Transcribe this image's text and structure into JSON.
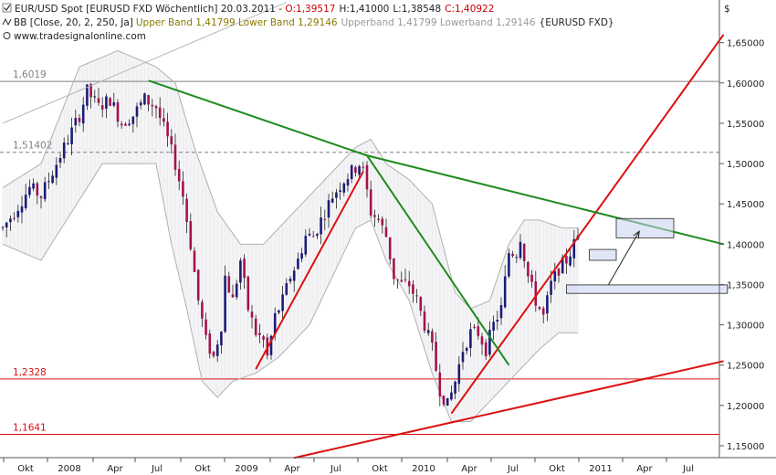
{
  "header": {
    "line1_prefix": "EUR/USD Spot [EURUSD FXD  Wöchentlich] 20.03.2011 - ",
    "open": "O:1,39517",
    "high": "H:1,41000",
    "low": "L:1,38548",
    "close": "C:1,40922",
    "line2_prefix": "BB [Close, 20, 2, 250, Ja]",
    "bands_current": "Upper Band 1,41799 Lower Band 1,29146",
    "bands_prev": "Upperband 1,41799 Lowerband 1,29146",
    "bands_symbol": "{EURUSD FXD}",
    "source": "www.tradesignalonline.com",
    "currency": "$"
  },
  "colors": {
    "candle_up": "#1c1c78",
    "candle_down": "#a3134a",
    "support_red": "#dc1010",
    "trend_green": "#1e8c1e",
    "band_gray": "#b0b0b0",
    "header_red": "#cc0000",
    "header_olive": "#8a7a00",
    "header_gray": "#999999"
  },
  "chart_data": {
    "type": "candlestick",
    "instrument": "EUR/USD",
    "timeframe": "weekly",
    "ylim": [
      1.13,
      1.67
    ],
    "y_ticks": [
      "1,15000",
      "1,20000",
      "1,25000",
      "1,30000",
      "1,35000",
      "1,40000",
      "1,45000",
      "1,50000",
      "1,55000",
      "1,60000",
      "1,65000"
    ],
    "x_ticks": [
      "Okt",
      "2008",
      "Apr",
      "Jul",
      "Okt",
      "2009",
      "Apr",
      "Jul",
      "Okt",
      "2010",
      "Apr",
      "Jul",
      "Okt",
      "2011",
      "Apr",
      "Jul"
    ],
    "levels": [
      {
        "value": 1.6019,
        "label": "1,6019",
        "color": "#808080",
        "style": "solid"
      },
      {
        "value": 1.51402,
        "label": "1,51402",
        "color": "#808080",
        "style": "dashed"
      },
      {
        "value": 1.2328,
        "label": "1,2328",
        "color": "#dc1010",
        "style": "solid"
      },
      {
        "value": 1.1641,
        "label": "1,1641",
        "color": "#dc1010",
        "style": "solid"
      }
    ],
    "waypoints": [
      [
        0,
        1.42
      ],
      [
        3,
        1.44
      ],
      [
        7,
        1.47
      ],
      [
        10,
        1.46
      ],
      [
        14,
        1.5
      ],
      [
        18,
        1.54
      ],
      [
        20,
        1.56
      ],
      [
        22,
        1.59
      ],
      [
        25,
        1.57
      ],
      [
        28,
        1.58
      ],
      [
        31,
        1.55
      ],
      [
        34,
        1.56
      ],
      [
        37,
        1.58
      ],
      [
        40,
        1.57
      ],
      [
        43,
        1.53
      ],
      [
        45,
        1.5
      ],
      [
        47,
        1.46
      ],
      [
        49,
        1.4
      ],
      [
        51,
        1.33
      ],
      [
        53,
        1.28
      ],
      [
        55,
        1.26
      ],
      [
        57,
        1.3
      ],
      [
        58,
        1.36
      ],
      [
        60,
        1.33
      ],
      [
        62,
        1.38
      ],
      [
        64,
        1.32
      ],
      [
        66,
        1.29
      ],
      [
        68,
        1.28
      ],
      [
        69,
        1.26
      ],
      [
        71,
        1.31
      ],
      [
        73,
        1.33
      ],
      [
        75,
        1.36
      ],
      [
        77,
        1.38
      ],
      [
        79,
        1.41
      ],
      [
        81,
        1.41
      ],
      [
        83,
        1.43
      ],
      [
        86,
        1.46
      ],
      [
        89,
        1.48
      ],
      [
        91,
        1.49
      ],
      [
        93,
        1.5
      ],
      [
        94,
        1.49
      ],
      [
        96,
        1.44
      ],
      [
        98,
        1.43
      ],
      [
        100,
        1.41
      ],
      [
        102,
        1.36
      ],
      [
        104,
        1.35
      ],
      [
        106,
        1.35
      ],
      [
        108,
        1.33
      ],
      [
        110,
        1.3
      ],
      [
        112,
        1.27
      ],
      [
        114,
        1.22
      ],
      [
        116,
        1.2
      ],
      [
        118,
        1.23
      ],
      [
        120,
        1.27
      ],
      [
        122,
        1.29
      ],
      [
        124,
        1.29
      ],
      [
        126,
        1.27
      ],
      [
        128,
        1.3
      ],
      [
        130,
        1.32
      ],
      [
        132,
        1.39
      ],
      [
        134,
        1.39
      ],
      [
        135,
        1.41
      ],
      [
        137,
        1.36
      ],
      [
        139,
        1.33
      ],
      [
        141,
        1.31
      ],
      [
        143,
        1.35
      ],
      [
        145,
        1.37
      ],
      [
        147,
        1.38
      ],
      [
        149,
        1.4
      ],
      [
        150,
        1.41
      ]
    ],
    "upper_band": [
      [
        0,
        1.47
      ],
      [
        10,
        1.5
      ],
      [
        20,
        1.62
      ],
      [
        30,
        1.64
      ],
      [
        40,
        1.62
      ],
      [
        45,
        1.6
      ],
      [
        50,
        1.52
      ],
      [
        56,
        1.44
      ],
      [
        62,
        1.4
      ],
      [
        68,
        1.4
      ],
      [
        74,
        1.43
      ],
      [
        80,
        1.46
      ],
      [
        86,
        1.49
      ],
      [
        92,
        1.52
      ],
      [
        96,
        1.53
      ],
      [
        100,
        1.5
      ],
      [
        106,
        1.48
      ],
      [
        112,
        1.45
      ],
      [
        118,
        1.34
      ],
      [
        122,
        1.32
      ],
      [
        127,
        1.33
      ],
      [
        132,
        1.4
      ],
      [
        136,
        1.43
      ],
      [
        140,
        1.43
      ],
      [
        146,
        1.42
      ],
      [
        150,
        1.42
      ]
    ],
    "lower_band": [
      [
        0,
        1.4
      ],
      [
        10,
        1.38
      ],
      [
        18,
        1.44
      ],
      [
        26,
        1.5
      ],
      [
        34,
        1.5
      ],
      [
        40,
        1.5
      ],
      [
        44,
        1.4
      ],
      [
        48,
        1.32
      ],
      [
        52,
        1.23
      ],
      [
        56,
        1.21
      ],
      [
        60,
        1.23
      ],
      [
        66,
        1.24
      ],
      [
        72,
        1.26
      ],
      [
        80,
        1.3
      ],
      [
        86,
        1.36
      ],
      [
        92,
        1.42
      ],
      [
        96,
        1.43
      ],
      [
        100,
        1.38
      ],
      [
        106,
        1.33
      ],
      [
        112,
        1.24
      ],
      [
        117,
        1.18
      ],
      [
        122,
        1.18
      ],
      [
        128,
        1.21
      ],
      [
        134,
        1.24
      ],
      [
        140,
        1.27
      ],
      [
        145,
        1.29
      ],
      [
        150,
        1.29
      ]
    ],
    "trend_lines": [
      {
        "color": "#dc1010",
        "points": [
          [
            66,
            1.245
          ],
          [
            94,
            1.49
          ]
        ],
        "note": "support 2009"
      },
      {
        "color": "#dc1010",
        "points": [
          [
            117,
            1.19
          ],
          [
            188,
            1.66
          ]
        ],
        "note": "support 2010"
      },
      {
        "color": "#dc1010",
        "points": [
          [
            76,
            1.135
          ],
          [
            188,
            1.255
          ]
        ],
        "note": "long-term support"
      },
      {
        "color": "#1e8c1e",
        "points": [
          [
            38,
            1.603
          ],
          [
            95,
            1.51
          ],
          [
            188,
            1.4
          ]
        ],
        "note": "downtrend resistance"
      },
      {
        "color": "#1e8c1e",
        "points": [
          [
            95,
            1.51
          ],
          [
            132,
            1.25
          ]
        ],
        "note": "fall 2010"
      },
      {
        "color": "#b4b4b4",
        "points": [
          [
            0,
            1.55
          ],
          [
            74,
            1.7
          ]
        ],
        "note": "channel top"
      }
    ],
    "boxes": [
      {
        "x0": 160,
        "x1": 175,
        "y0": 1.4079,
        "y1": 1.4318
      },
      {
        "x0": 153,
        "x1": 160,
        "y0": 1.38,
        "y1": 1.3935
      },
      {
        "x0": 147,
        "x1": 189,
        "y0": 1.339,
        "y1": 1.3495
      }
    ],
    "arrow": {
      "from": [
        158,
        1.35
      ],
      "to": [
        166,
        1.416
      ]
    }
  }
}
